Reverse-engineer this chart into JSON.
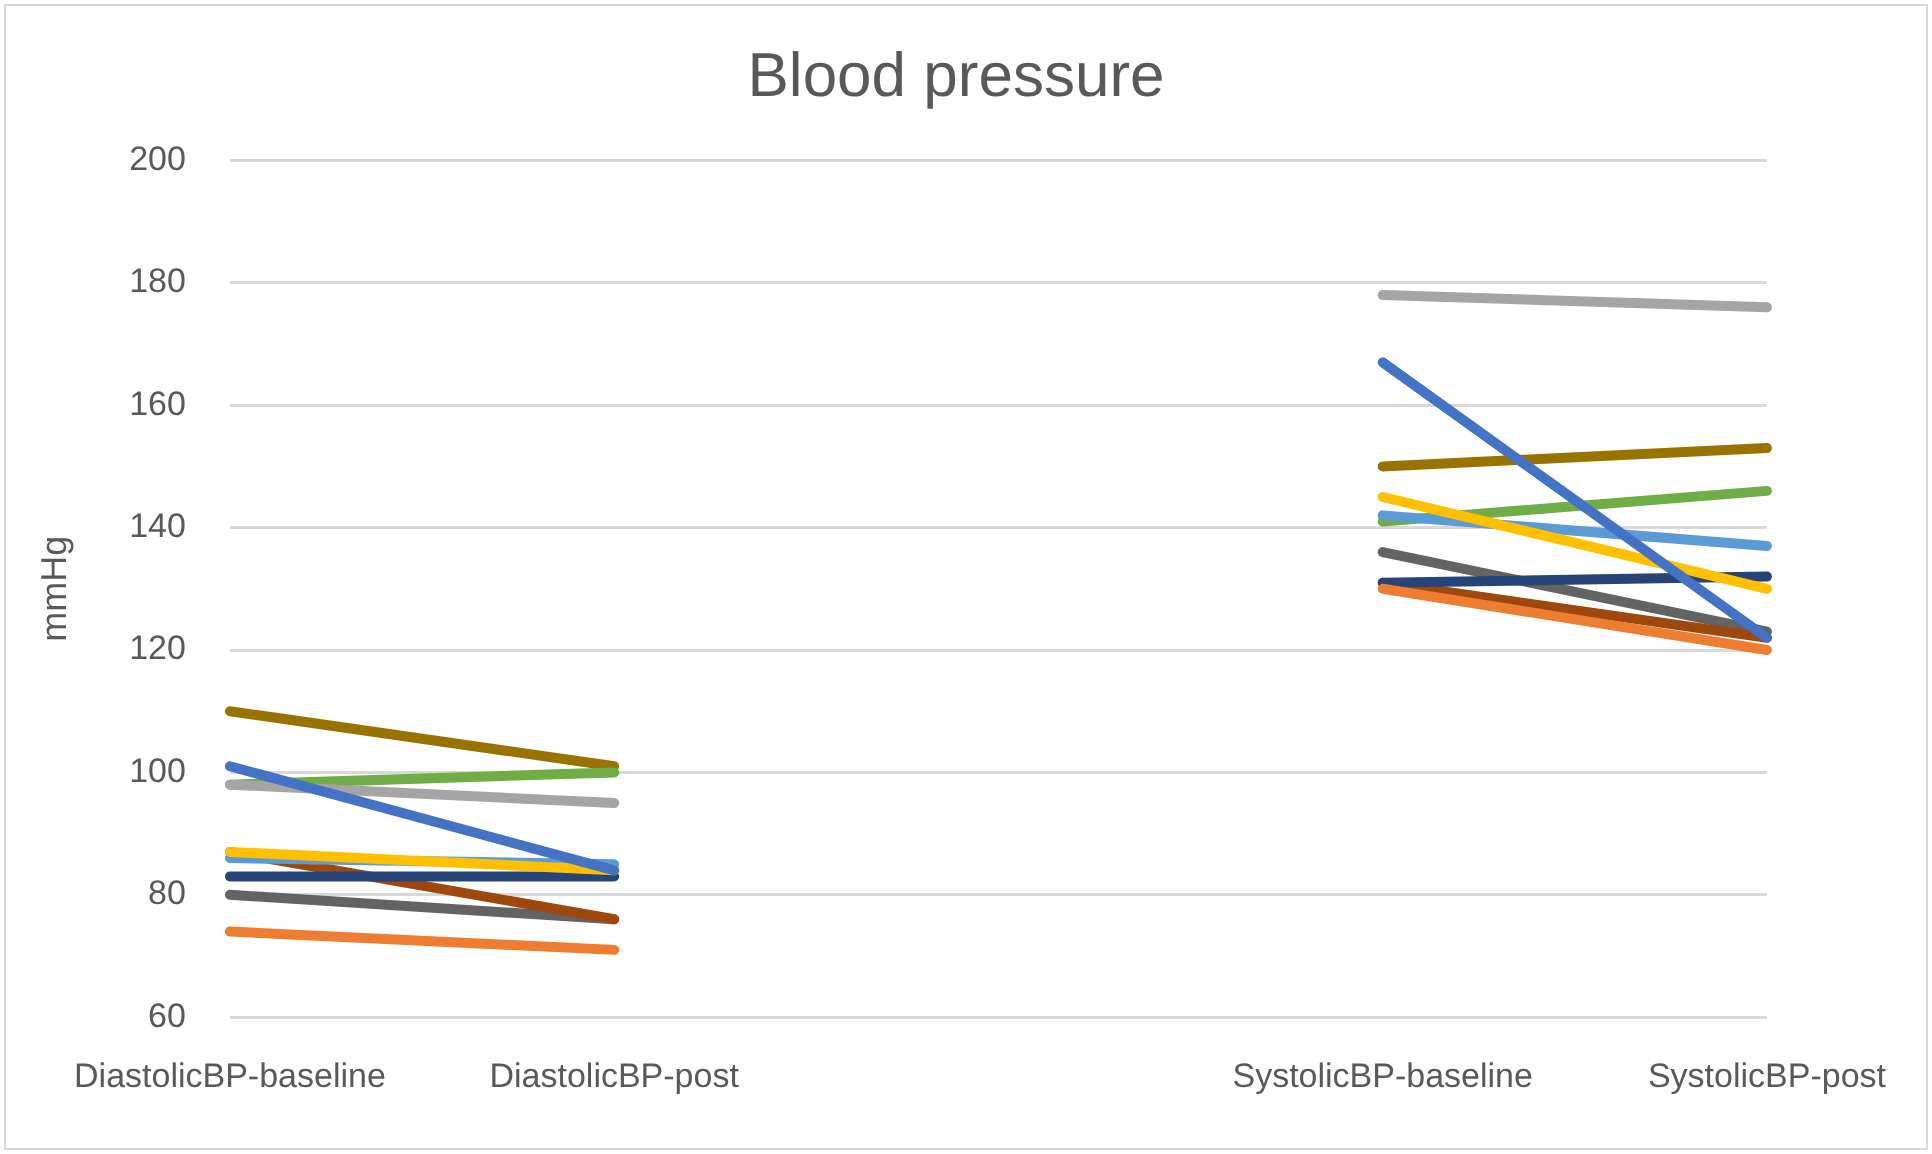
{
  "chart_data": {
    "type": "line",
    "title": "Blood pressure",
    "ylabel": "mmHg",
    "categories": [
      "DiastolicBP-baseline",
      "DiastolicBP-post",
      null,
      "SystolicBP-baseline",
      "SystolicBP-post"
    ],
    "ylim": [
      60,
      200
    ],
    "yticks": [
      60,
      80,
      100,
      120,
      140,
      160,
      180,
      200
    ],
    "grid": "y",
    "legend": false,
    "marker": "none",
    "line_style": "solid",
    "series": [
      {
        "color": "#4472c4",
        "values": [
          101,
          84,
          null,
          167,
          122
        ]
      },
      {
        "color": "#ed7d31",
        "values": [
          74,
          71,
          null,
          130,
          120
        ]
      },
      {
        "color": "#a5a5a5",
        "values": [
          98,
          95,
          null,
          178,
          176
        ]
      },
      {
        "color": "#ffc000",
        "values": [
          87,
          84,
          null,
          145,
          130
        ]
      },
      {
        "color": "#5b9bd5",
        "values": [
          86,
          85,
          null,
          142,
          137
        ]
      },
      {
        "color": "#70ad47",
        "values": [
          98,
          100,
          null,
          141,
          146
        ]
      },
      {
        "color": "#264478",
        "values": [
          83,
          83,
          null,
          131,
          132
        ]
      },
      {
        "color": "#9e480e",
        "values": [
          87,
          76,
          null,
          131,
          122
        ]
      },
      {
        "color": "#636363",
        "values": [
          80,
          76,
          null,
          136,
          123
        ]
      },
      {
        "color": "#997300",
        "values": [
          110,
          101,
          null,
          150,
          153
        ]
      }
    ]
  }
}
